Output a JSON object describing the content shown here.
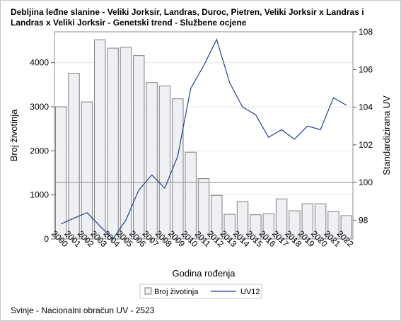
{
  "title": "Debljina leđne slanine - Veliki Jorksir, Landras, Duroc, Pietren, Veliki Jorksir x Landras i Landras x Veliki Jorksir - Genetski trend - Službene ocjene",
  "footnote": "Svinje - Nacionalni obračun UV - 2523",
  "colors": {
    "bar_fill": "#eef0f4",
    "bar_stroke": "#7f7f7f",
    "line": "#1f3f8f",
    "ref_line": "#a0a0a0"
  },
  "chart_data": {
    "type": "bar+line",
    "title": "Debljina leđne slanine - Veliki Jorksir, Landras, Duroc, Pietren, Veliki Jorksir x Landras i Landras x Veliki Jorksir - Genetski trend - Službene ocjene",
    "xlabel": "Godina rođenja",
    "ylabel_left": "Broj životinja",
    "ylabel_right": "Standardizirana UV",
    "categories": [
      "2000",
      "2001",
      "2002",
      "2003",
      "2004",
      "2005",
      "2006",
      "2007",
      "2008",
      "2009",
      "2010",
      "2011",
      "2012",
      "2013",
      "2014",
      "2015",
      "2016",
      "2017",
      "2018",
      "2019",
      "2020",
      "2021",
      "2022"
    ],
    "series": [
      {
        "name": "Broj životinja",
        "type": "bar",
        "axis": "left",
        "values": [
          3000,
          3760,
          3110,
          4520,
          4330,
          4350,
          4160,
          3550,
          3470,
          3180,
          1970,
          1370,
          990,
          560,
          850,
          550,
          570,
          910,
          640,
          800,
          800,
          620,
          530
        ]
      },
      {
        "name": "UV12",
        "type": "line",
        "axis": "right",
        "values": [
          97.8,
          98.1,
          98.4,
          97.7,
          97.0,
          98.0,
          99.6,
          100.4,
          99.7,
          101.4,
          105.0,
          106.2,
          107.6,
          105.3,
          104.0,
          103.6,
          102.4,
          102.8,
          102.3,
          103.0,
          102.8,
          104.5,
          104.1
        ]
      }
    ],
    "ylim_left": [
      0,
      4700
    ],
    "yticks_left": [
      "0",
      "1000",
      "2000",
      "3000",
      "4000"
    ],
    "ylim_right": [
      97.0,
      108.0
    ],
    "yticks_right": [
      "98",
      "100",
      "102",
      "104",
      "106",
      "108"
    ],
    "reference_line_right": 100,
    "grid": true,
    "legend_position": "bottom"
  }
}
